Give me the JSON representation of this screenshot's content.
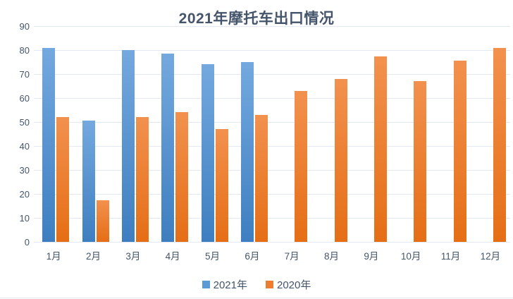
{
  "page": {
    "background": "#FFFFFF",
    "bottom_border_color": "#E2E6F0"
  },
  "chart_data": {
    "type": "bar",
    "title": "2021年摩托车出口情况",
    "title_color": "#44546A",
    "categories": [
      "1月",
      "2月",
      "3月",
      "4月",
      "5月",
      "6月",
      "7月",
      "8月",
      "9月",
      "10月",
      "11月",
      "12月"
    ],
    "series": [
      {
        "name": "2021年",
        "color": "#5B9BD5",
        "gradient_top": "#74A9DF",
        "gradient_bottom": "#3E7EC0",
        "values": [
          81,
          50.5,
          80,
          78.5,
          74,
          75,
          null,
          null,
          null,
          null,
          null,
          null
        ]
      },
      {
        "name": "2020年",
        "color": "#ED7D31",
        "gradient_top": "#F2914E",
        "gradient_bottom": "#E56E15",
        "values": [
          52,
          17.5,
          52,
          54,
          47,
          53,
          63,
          68,
          77.5,
          67,
          75.5,
          81
        ]
      }
    ],
    "ylim": [
      0,
      90
    ],
    "yticks": [
      0,
      10,
      20,
      30,
      40,
      50,
      60,
      70,
      80,
      90
    ],
    "grid": true,
    "gridline_color": "#E3E9F3",
    "axis_text_color": "#44546A",
    "legend_position": "bottom",
    "xlabel": "",
    "ylabel": ""
  }
}
